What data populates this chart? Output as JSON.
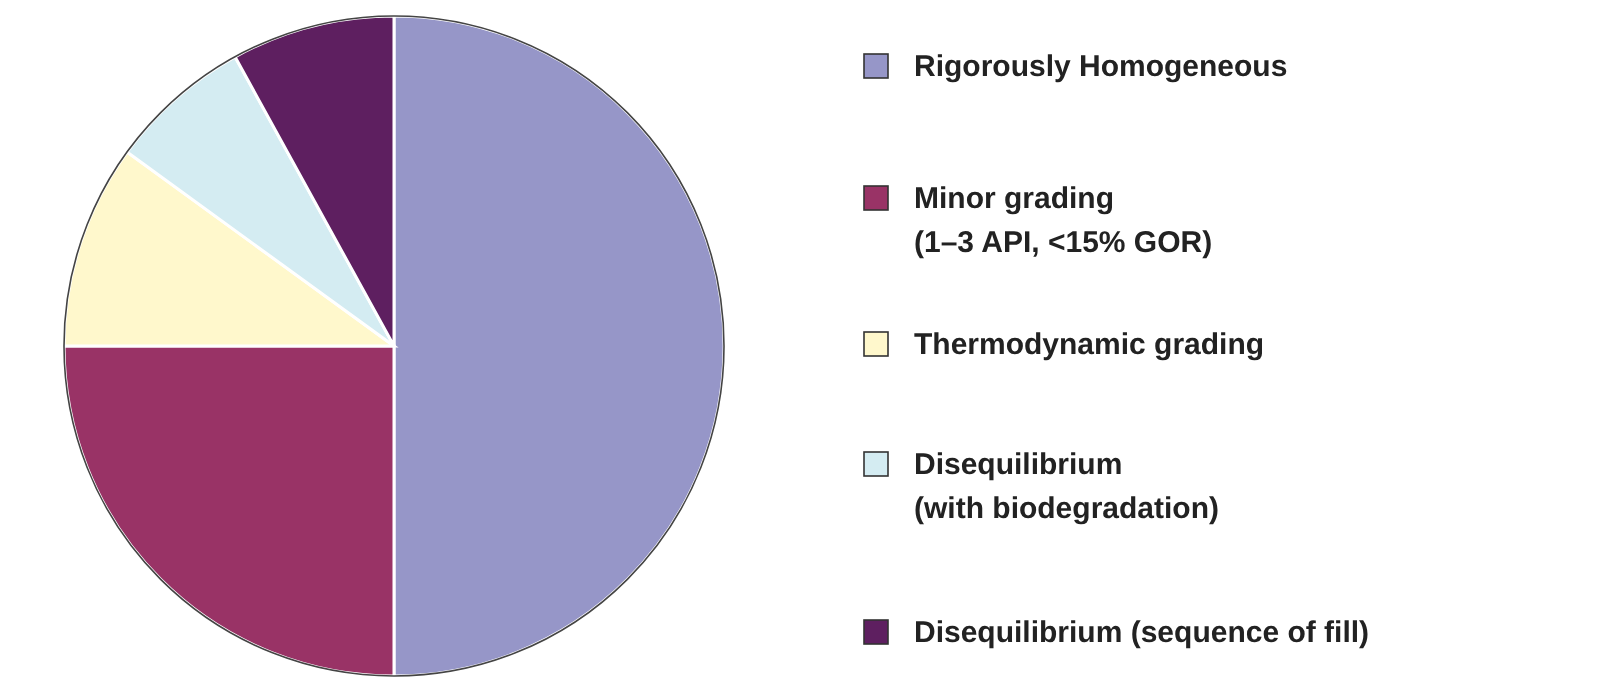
{
  "chart_data": {
    "type": "pie",
    "categories": [
      "Rigorously Homogeneous",
      "Minor grading\n(1–3 API, <15% GOR)",
      "Thermodynamic grading",
      "Disequilibrium\n(with biodegradation)",
      "Disequilibrium (sequence of fill)"
    ],
    "values": [
      50,
      25,
      10,
      7,
      8
    ],
    "colors": [
      "#9696c8",
      "#993366",
      "#fff8cc",
      "#d4ecf2",
      "#5e1f60"
    ],
    "legend": "right"
  }
}
